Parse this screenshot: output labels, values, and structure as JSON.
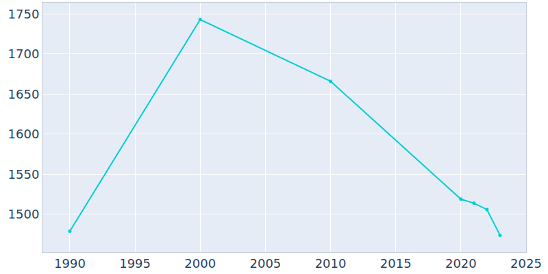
{
  "chart_data": {
    "type": "line",
    "x": [
      1990,
      2000,
      2010,
      2020,
      2021,
      2022,
      2023
    ],
    "values": [
      1479,
      1743,
      1666,
      1519,
      1514,
      1506,
      1474
    ],
    "color": "#00ced1",
    "marker": "circle",
    "xlim": [
      1987.9,
      2025
    ],
    "xticks": [
      1990,
      1995,
      2000,
      2005,
      2010,
      2015,
      2020,
      2025
    ],
    "ylim": [
      1453,
      1764
    ],
    "yticks": [
      1500,
      1550,
      1600,
      1650,
      1700,
      1750
    ],
    "grid": true
  }
}
